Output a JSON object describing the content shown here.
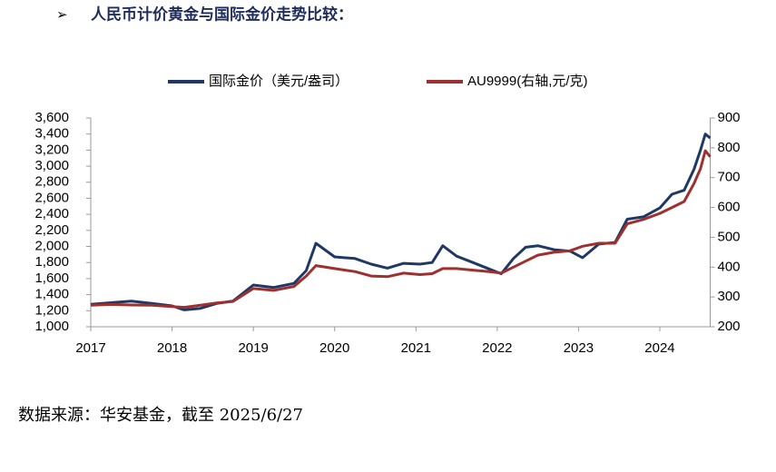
{
  "chart_data": {
    "type": "line",
    "title": "人民币计价黄金与国际金价走势比较：",
    "source": "数据来源：华安基金，截至 2025/6/27",
    "x": [
      2017.0,
      2017.25,
      2017.5,
      2017.75,
      2018.0,
      2018.15,
      2018.35,
      2018.55,
      2018.75,
      2019.0,
      2019.25,
      2019.5,
      2019.65,
      2019.77,
      2020.0,
      2020.25,
      2020.45,
      2020.65,
      2020.85,
      2021.05,
      2021.2,
      2021.33,
      2021.5,
      2021.7,
      2021.9,
      2022.05,
      2022.2,
      2022.35,
      2022.5,
      2022.7,
      2022.9,
      2023.05,
      2023.25,
      2023.45,
      2023.6,
      2023.8,
      2024.0,
      2024.15,
      2024.3,
      2024.42,
      2024.5,
      2024.56,
      2024.62
    ],
    "series": [
      {
        "name": "国际金价（美元/盎司）",
        "color": "#1f3864",
        "values": [
          1280,
          1300,
          1320,
          1290,
          1260,
          1210,
          1230,
          1290,
          1320,
          1520,
          1490,
          1540,
          1700,
          2040,
          1870,
          1850,
          1780,
          1730,
          1790,
          1780,
          1800,
          2010,
          1880,
          1800,
          1720,
          1660,
          1850,
          1990,
          2010,
          1960,
          1940,
          1860,
          2030,
          2050,
          2340,
          2370,
          2480,
          2650,
          2700,
          2960,
          3200,
          3400,
          3350
        ]
      },
      {
        "name": "AU9999(右轴,元/克)",
        "color": "#9e3030",
        "axis": "y2",
        "values": [
          272,
          275,
          273,
          272,
          268,
          265,
          272,
          280,
          285,
          328,
          322,
          335,
          370,
          405,
          395,
          385,
          370,
          368,
          380,
          375,
          378,
          395,
          395,
          390,
          385,
          380,
          400,
          420,
          440,
          450,
          455,
          470,
          480,
          480,
          545,
          560,
          580,
          600,
          620,
          680,
          730,
          790,
          770
        ]
      }
    ],
    "xlim": [
      2017,
      2024.62
    ],
    "xticks": [
      2017,
      2018,
      2019,
      2020,
      2021,
      2022,
      2023,
      2024
    ],
    "ylim": [
      1000,
      3600
    ],
    "yticks": [
      {
        "value": 1000,
        "label": "1,000"
      },
      {
        "value": 1200,
        "label": "1,200"
      },
      {
        "value": 1400,
        "label": "1,400"
      },
      {
        "value": 1600,
        "label": "1,600"
      },
      {
        "value": 1800,
        "label": "1,800"
      },
      {
        "value": 2000,
        "label": "2,000"
      },
      {
        "value": 2200,
        "label": "2,200"
      },
      {
        "value": 2400,
        "label": "2,400"
      },
      {
        "value": 2600,
        "label": "2,600"
      },
      {
        "value": 2800,
        "label": "2,800"
      },
      {
        "value": 3000,
        "label": "3,000"
      },
      {
        "value": 3200,
        "label": "3,200"
      },
      {
        "value": 3400,
        "label": "3,400"
      },
      {
        "value": 3600,
        "label": "3,600"
      }
    ],
    "y2lim": [
      200,
      900
    ],
    "y2ticks": [
      200,
      300,
      400,
      500,
      600,
      700,
      800,
      900
    ],
    "legend": "top"
  }
}
